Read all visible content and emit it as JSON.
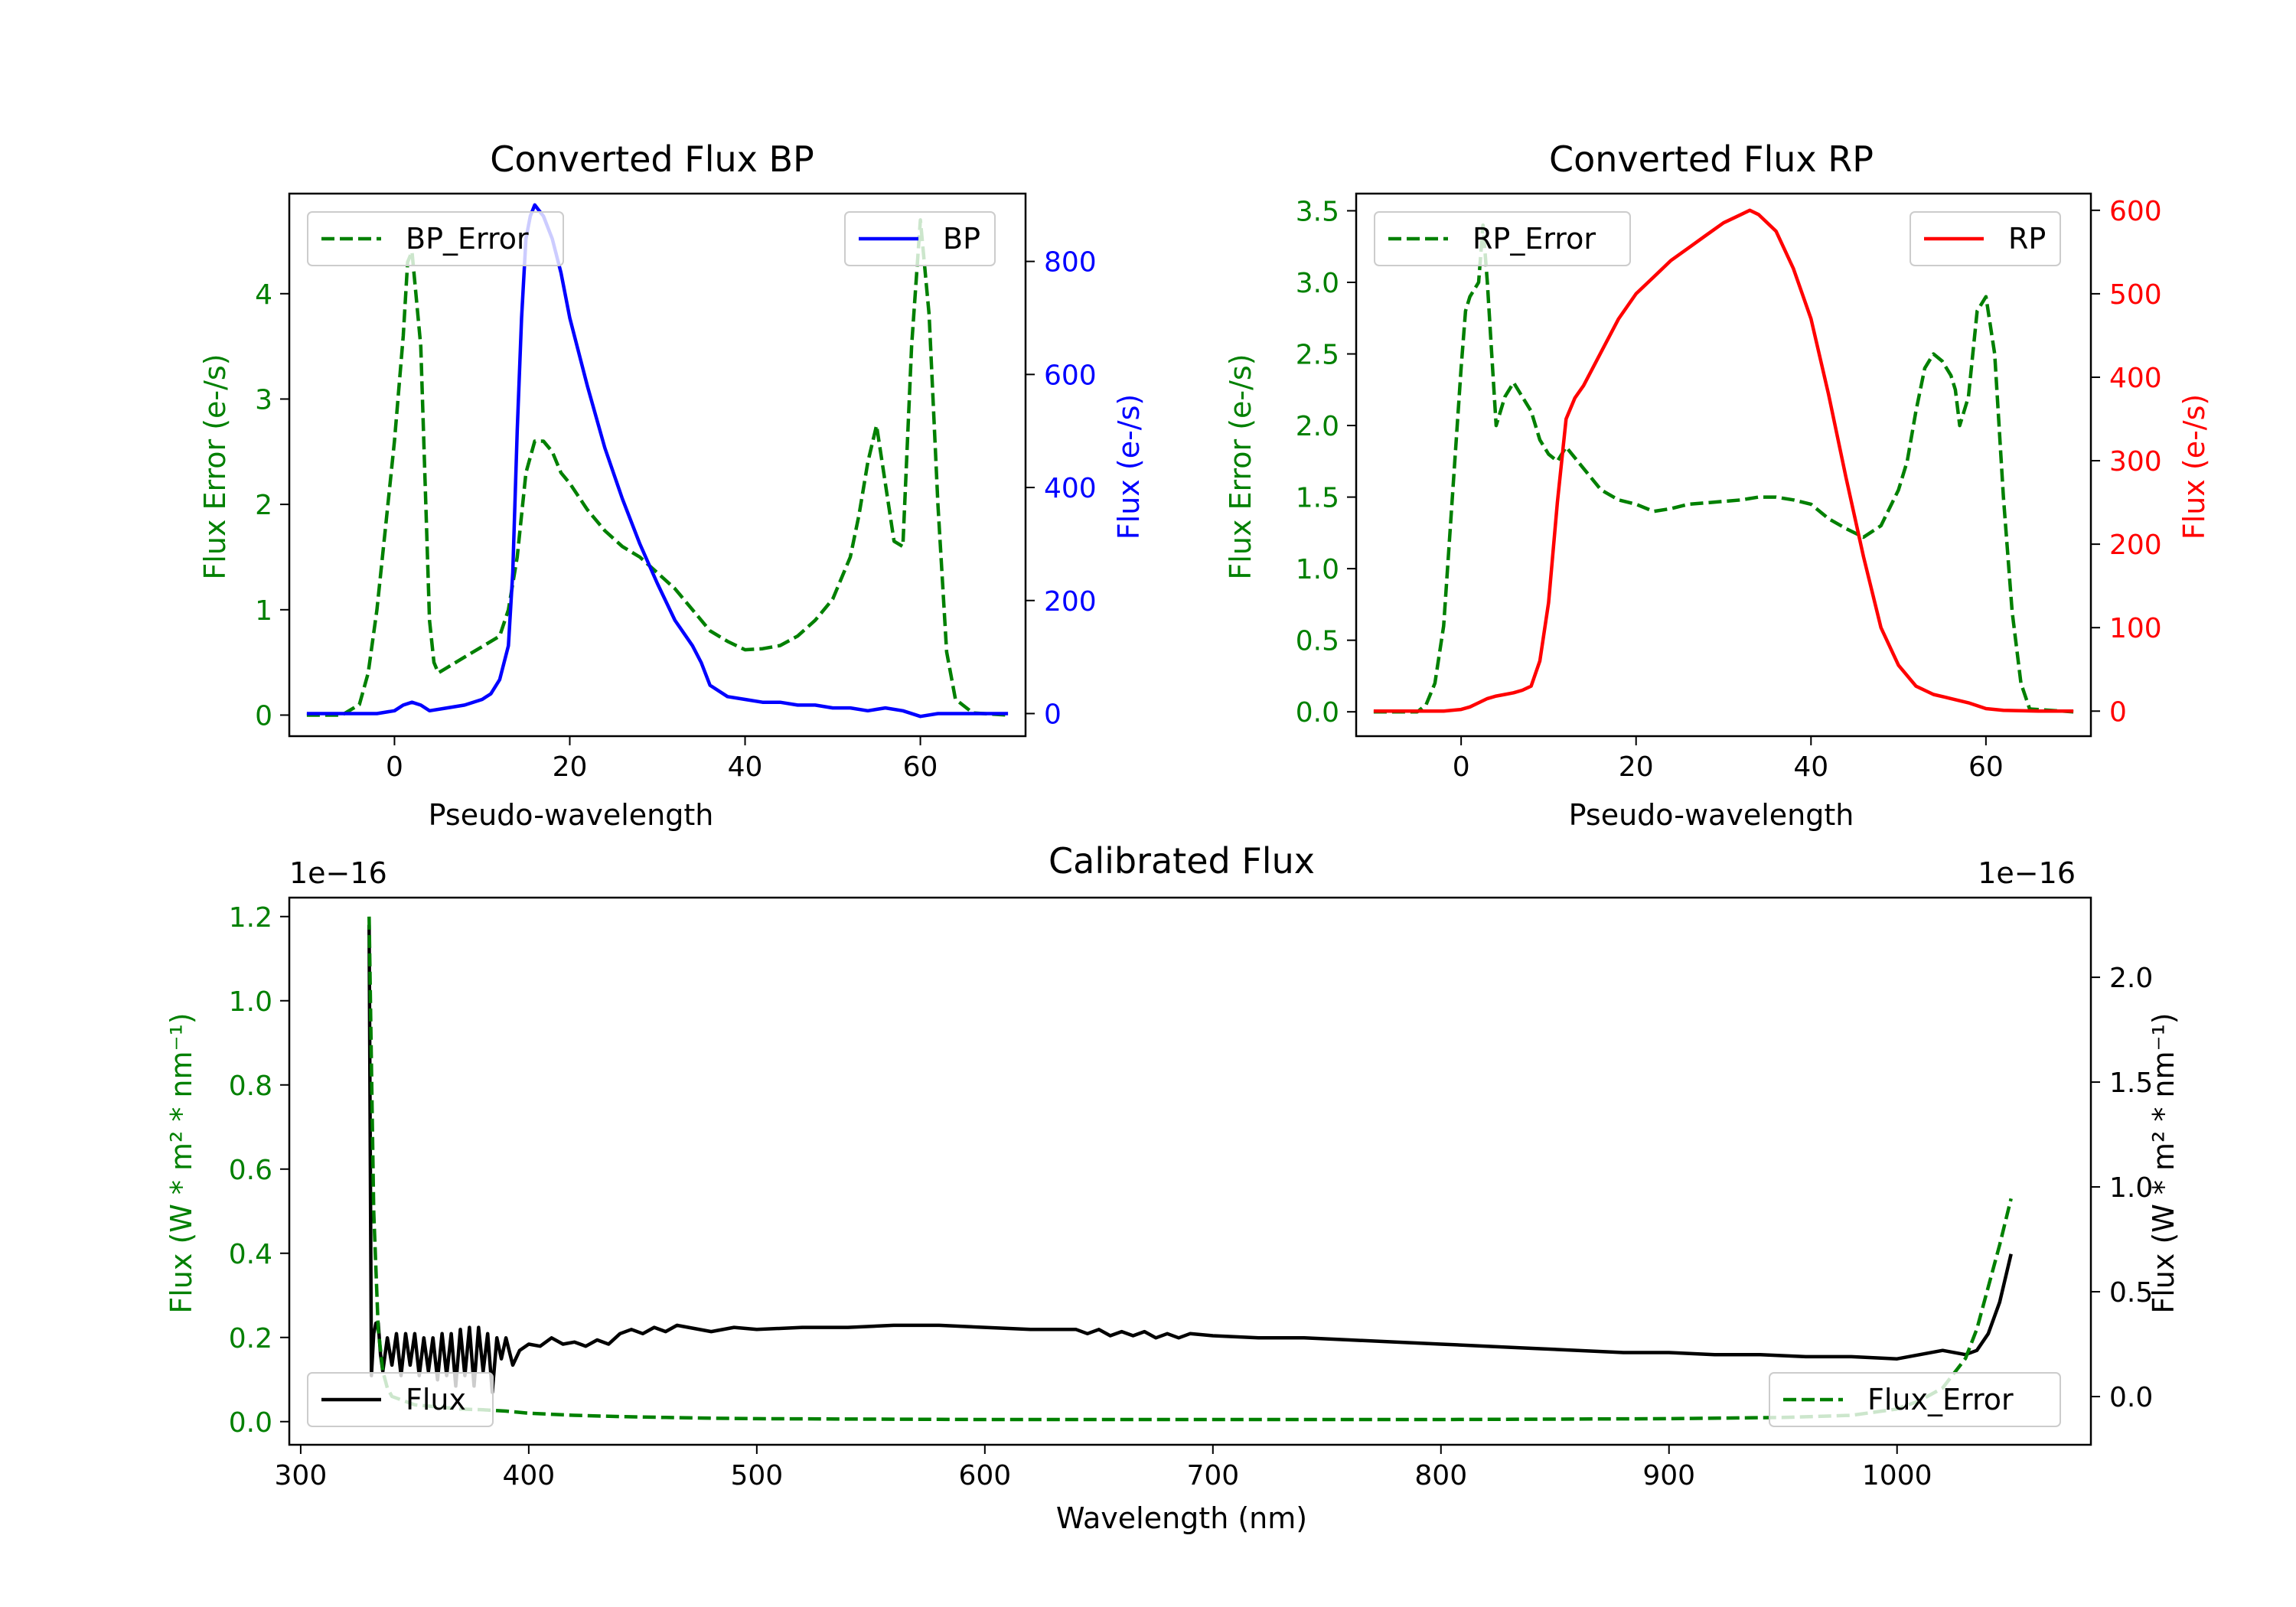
{
  "chart_data": [
    {
      "type": "line",
      "title": "Converted Flux BP",
      "xlabel": "Pseudo-wavelength",
      "ylabel_left": "Flux Error (e-/s)",
      "ylabel_right": "Flux (e-/s)",
      "xlim": [
        -12,
        72
      ],
      "ylim_left": [
        -0.2,
        4.95
      ],
      "ylim_right": [
        -40,
        920
      ],
      "xticks": [
        0,
        20,
        40,
        60
      ],
      "yticks_left": [
        0,
        1,
        2,
        3,
        4
      ],
      "yticks_right": [
        0,
        200,
        400,
        600,
        800
      ],
      "series": [
        {
          "name": "BP_Error",
          "axis": "left",
          "color": "#008000",
          "dash": true,
          "legend": "top-left",
          "x": [
            -10,
            -6,
            -4,
            -3,
            -2,
            -1,
            0,
            1,
            1.5,
            2,
            3,
            3.5,
            4,
            4.5,
            5,
            6,
            7,
            8,
            10,
            12,
            13,
            14,
            15,
            16,
            17,
            18,
            19,
            20,
            22,
            24,
            26,
            28,
            30,
            32,
            34,
            36,
            38,
            40,
            42,
            44,
            46,
            48,
            50,
            52,
            53,
            54,
            55,
            56,
            57,
            58,
            59,
            60,
            61,
            62,
            63,
            64,
            66,
            70
          ],
          "y": [
            0,
            0,
            0.1,
            0.4,
            1.0,
            1.8,
            2.6,
            3.6,
            4.3,
            4.4,
            3.5,
            2.2,
            0.9,
            0.5,
            0.4,
            0.45,
            0.5,
            0.55,
            0.65,
            0.75,
            1.0,
            1.5,
            2.3,
            2.6,
            2.6,
            2.5,
            2.3,
            2.2,
            1.95,
            1.75,
            1.6,
            1.5,
            1.35,
            1.2,
            1.0,
            0.8,
            0.7,
            0.62,
            0.63,
            0.66,
            0.75,
            0.9,
            1.1,
            1.5,
            1.9,
            2.4,
            2.75,
            2.2,
            1.65,
            1.6,
            3.5,
            4.7,
            3.8,
            2.0,
            0.6,
            0.15,
            0.02,
            0
          ]
        },
        {
          "name": "BP",
          "axis": "right",
          "color": "#0000ff",
          "dash": false,
          "legend": "top-right",
          "x": [
            -10,
            -2,
            0,
            1,
            2,
            3,
            4,
            6,
            8,
            10,
            11,
            12,
            13,
            13.5,
            14,
            14.5,
            15,
            15.5,
            16,
            16.5,
            17,
            18,
            19,
            20,
            22,
            24,
            26,
            28,
            30,
            32,
            34,
            35,
            36,
            38,
            40,
            42,
            44,
            46,
            48,
            50,
            52,
            54,
            56,
            58,
            60,
            62,
            66,
            70
          ],
          "y": [
            0,
            0,
            5,
            15,
            20,
            15,
            5,
            10,
            15,
            25,
            35,
            60,
            120,
            250,
            500,
            700,
            840,
            880,
            900,
            890,
            880,
            840,
            780,
            700,
            580,
            470,
            380,
            300,
            230,
            165,
            120,
            90,
            50,
            30,
            25,
            20,
            20,
            15,
            15,
            10,
            10,
            5,
            10,
            5,
            -5,
            0,
            0,
            0
          ]
        }
      ]
    },
    {
      "type": "line",
      "title": "Converted Flux RP",
      "xlabel": "Pseudo-wavelength",
      "ylabel_left": "Flux Error (e-/s)",
      "ylabel_right": "Flux (e-/s)",
      "xlim": [
        -12,
        72
      ],
      "ylim_left": [
        -0.17,
        3.62
      ],
      "ylim_right": [
        -30,
        620
      ],
      "xticks": [
        0,
        20,
        40,
        60
      ],
      "yticks_left": [
        0.0,
        0.5,
        1.0,
        1.5,
        2.0,
        2.5,
        3.0,
        3.5
      ],
      "yticks_right": [
        0,
        100,
        200,
        300,
        400,
        500,
        600
      ],
      "series": [
        {
          "name": "RP_Error",
          "axis": "left",
          "color": "#008000",
          "dash": true,
          "legend": "top-left",
          "x": [
            -10,
            -5,
            -4,
            -3,
            -2,
            -1,
            0,
            0.5,
            1,
            2,
            2.5,
            3,
            3.5,
            4,
            5,
            6,
            7,
            8,
            9,
            10,
            11,
            12,
            14,
            16,
            18,
            20,
            22,
            24,
            26,
            28,
            30,
            32,
            34,
            36,
            38,
            40,
            42,
            44,
            46,
            48,
            50,
            51,
            52,
            53,
            54,
            55,
            56,
            56.5,
            57,
            58,
            59,
            60,
            61,
            62,
            63,
            64,
            65,
            70
          ],
          "y": [
            0,
            0,
            0.05,
            0.2,
            0.6,
            1.5,
            2.4,
            2.8,
            2.9,
            3.0,
            3.4,
            3.0,
            2.5,
            2.0,
            2.2,
            2.3,
            2.2,
            2.1,
            1.9,
            1.8,
            1.75,
            1.85,
            1.7,
            1.55,
            1.48,
            1.45,
            1.4,
            1.42,
            1.45,
            1.46,
            1.47,
            1.48,
            1.5,
            1.5,
            1.48,
            1.45,
            1.35,
            1.28,
            1.22,
            1.3,
            1.55,
            1.75,
            2.1,
            2.4,
            2.5,
            2.45,
            2.35,
            2.25,
            2.0,
            2.2,
            2.8,
            2.9,
            2.5,
            1.5,
            0.7,
            0.2,
            0.02,
            0
          ]
        },
        {
          "name": "RP",
          "axis": "right",
          "color": "#ff0000",
          "dash": false,
          "legend": "top-right",
          "x": [
            -10,
            -4,
            -2,
            0,
            1,
            2,
            3,
            4,
            5,
            6,
            7,
            8,
            9,
            10,
            11,
            12,
            13,
            14,
            16,
            18,
            20,
            22,
            24,
            26,
            28,
            30,
            32,
            33,
            34,
            36,
            38,
            40,
            42,
            44,
            46,
            48,
            50,
            52,
            54,
            56,
            58,
            60,
            62,
            66,
            70
          ],
          "y": [
            0,
            0,
            0,
            2,
            5,
            10,
            15,
            18,
            20,
            22,
            25,
            30,
            60,
            130,
            250,
            350,
            375,
            390,
            430,
            470,
            500,
            520,
            540,
            555,
            570,
            585,
            595,
            600,
            595,
            575,
            530,
            470,
            380,
            280,
            185,
            100,
            55,
            30,
            20,
            15,
            10,
            3,
            1,
            0,
            0
          ]
        }
      ]
    },
    {
      "type": "line",
      "title": "Calibrated Flux",
      "xlabel": "Wavelength (nm)",
      "ylabel_left": "Flux (W * m² * nm⁻¹)",
      "ylabel_right": "Flux (W * m² * nm⁻¹)",
      "offset_left": "1e−16",
      "offset_right": "1e−16",
      "xlim": [
        295,
        1085
      ],
      "ylim_left": [
        -0.055,
        1.245
      ],
      "ylim_right": [
        -0.23,
        2.38
      ],
      "xticks": [
        300,
        400,
        500,
        600,
        700,
        800,
        900,
        1000
      ],
      "yticks_left": [
        0.0,
        0.2,
        0.4,
        0.6,
        0.8,
        1.0,
        1.2
      ],
      "yticks_right": [
        0.0,
        0.5,
        1.0,
        1.5,
        2.0
      ],
      "series": [
        {
          "name": "Flux",
          "axis": "right",
          "color": "#000000",
          "dash": false,
          "legend": "bottom-left",
          "x": [
            330,
            331,
            332,
            333,
            334,
            335,
            336,
            338,
            340,
            342,
            344,
            346,
            348,
            350,
            352,
            354,
            356,
            358,
            360,
            362,
            364,
            366,
            368,
            370,
            372,
            374,
            376,
            378,
            380,
            382,
            384,
            386,
            388,
            390,
            393,
            396,
            400,
            405,
            410,
            415,
            420,
            425,
            430,
            435,
            440,
            445,
            450,
            455,
            460,
            465,
            470,
            480,
            490,
            500,
            520,
            540,
            560,
            580,
            600,
            620,
            640,
            645,
            650,
            655,
            660,
            665,
            670,
            675,
            680,
            685,
            690,
            700,
            720,
            740,
            760,
            780,
            800,
            820,
            840,
            860,
            880,
            900,
            920,
            940,
            960,
            980,
            1000,
            1010,
            1020,
            1030,
            1035,
            1040,
            1045,
            1050
          ],
          "y": [
            2.25,
            0.1,
            0.3,
            0.35,
            0.35,
            0.2,
            0.12,
            0.28,
            0.15,
            0.3,
            0.1,
            0.3,
            0.15,
            0.3,
            0.1,
            0.28,
            0.12,
            0.28,
            0.08,
            0.3,
            0.1,
            0.3,
            0.05,
            0.32,
            0.1,
            0.33,
            0.05,
            0.33,
            0.12,
            0.3,
            0.02,
            0.28,
            0.18,
            0.28,
            0.15,
            0.22,
            0.25,
            0.24,
            0.28,
            0.25,
            0.26,
            0.24,
            0.27,
            0.25,
            0.3,
            0.32,
            0.3,
            0.33,
            0.31,
            0.34,
            0.33,
            0.31,
            0.33,
            0.32,
            0.33,
            0.33,
            0.34,
            0.34,
            0.33,
            0.32,
            0.32,
            0.3,
            0.32,
            0.29,
            0.31,
            0.29,
            0.31,
            0.28,
            0.3,
            0.28,
            0.3,
            0.29,
            0.28,
            0.28,
            0.27,
            0.26,
            0.25,
            0.24,
            0.23,
            0.22,
            0.21,
            0.21,
            0.2,
            0.2,
            0.19,
            0.19,
            0.18,
            0.2,
            0.22,
            0.2,
            0.22,
            0.3,
            0.45,
            0.68
          ]
        },
        {
          "name": "Flux_Error",
          "axis": "left",
          "color": "#008000",
          "dash": true,
          "legend": "bottom-right",
          "x": [
            330,
            332,
            334,
            336,
            338,
            340,
            345,
            350,
            360,
            370,
            380,
            390,
            400,
            420,
            440,
            460,
            480,
            500,
            550,
            600,
            650,
            700,
            750,
            800,
            850,
            900,
            950,
            980,
            1000,
            1010,
            1020,
            1030,
            1035,
            1040,
            1045,
            1050
          ],
          "y": [
            1.2,
            0.5,
            0.22,
            0.12,
            0.08,
            0.06,
            0.05,
            0.04,
            0.035,
            0.03,
            0.028,
            0.025,
            0.02,
            0.015,
            0.012,
            0.01,
            0.008,
            0.007,
            0.006,
            0.005,
            0.005,
            0.005,
            0.005,
            0.005,
            0.006,
            0.007,
            0.01,
            0.015,
            0.03,
            0.05,
            0.08,
            0.15,
            0.22,
            0.32,
            0.42,
            0.53
          ]
        }
      ]
    }
  ]
}
